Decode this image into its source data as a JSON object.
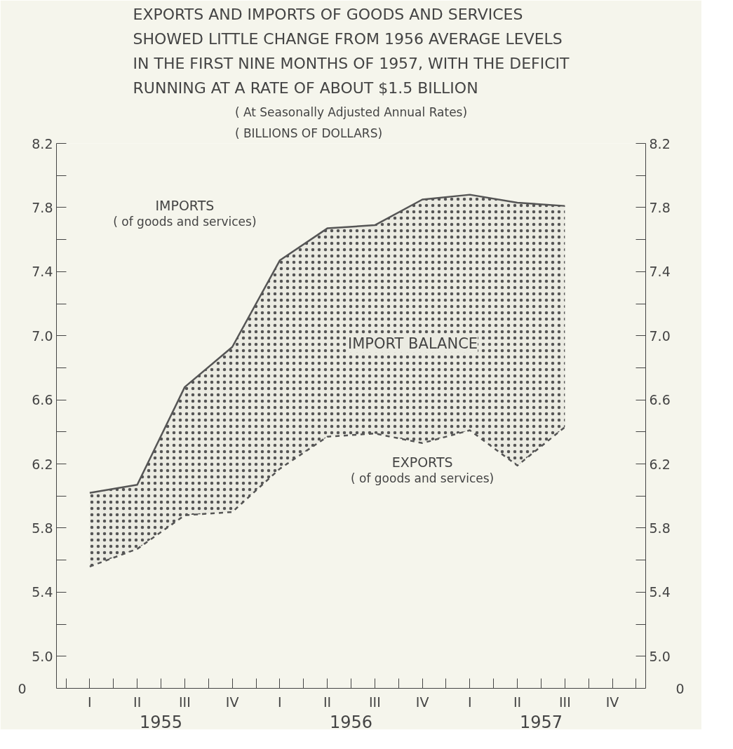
{
  "chart_data": {
    "type": "line",
    "title": "EXPORTS AND IMPORTS OF GOODS AND SERVICES\nSHOWED LITTLE CHANGE FROM 1956 AVERAGE LEVELS\nIN THE FIRST NINE MONTHS OF 1957, WITH THE DEFICIT\nRUNNING AT A RATE OF ABOUT $1.5 BILLION",
    "subtitle": "( At Seasonally Adjusted Annual Rates)\n( BILLIONS OF DOLLARS)",
    "categories": [
      "I",
      "II",
      "III",
      "IV",
      "I",
      "II",
      "III",
      "IV",
      "I",
      "II",
      "III",
      "IV"
    ],
    "series": [
      {
        "name": "IMPORTS\n( of goods and services)",
        "color": "#555555",
        "line_style": "solid",
        "values": [
          6.02,
          6.07,
          6.68,
          6.93,
          7.47,
          7.67,
          7.69,
          7.85,
          7.88,
          7.83,
          7.81,
          null
        ],
        "lower": [
          5.56,
          5.67,
          5.88,
          5.9,
          6.17,
          6.37,
          6.39,
          6.33,
          6.41,
          6.19,
          6.43,
          null
        ],
        "upper": [
          6.02,
          6.07,
          6.68,
          6.93,
          7.47,
          7.67,
          7.69,
          7.85,
          7.88,
          7.83,
          7.81,
          null
        ]
      },
      {
        "name": "EXPORTS\n( of goods and services)",
        "color": "#555555",
        "line_style": "dashed",
        "values": [
          5.56,
          5.67,
          5.88,
          5.9,
          6.17,
          6.37,
          6.39,
          6.33,
          6.41,
          6.19,
          6.43,
          null
        ]
      }
    ],
    "annotations": [
      "IMPORT BALANCE",
      "0",
      "0",
      "1955",
      "1956",
      "1957"
    ],
    "ylim": [
      4.8,
      8.2
    ],
    "yticks": [
      {
        "value": 5.0,
        "label": "5.0"
      },
      {
        "value": 5.2,
        "label": null
      },
      5.4,
      {
        "value": 5.6,
        "label": null
      },
      5.8,
      {
        "value": 6.0,
        "label": null
      },
      6.2,
      {
        "value": 6.4,
        "label": null
      },
      6.6,
      {
        "value": 6.8,
        "label": null
      },
      {
        "value": 7.0,
        "label": "7.0"
      },
      {
        "value": 7.2,
        "label": null
      },
      7.4,
      {
        "value": 7.6,
        "label": null
      },
      7.8,
      {
        "value": 8.0,
        "label": null
      },
      8.2
    ],
    "y2lim": [
      4.8,
      8.2
    ],
    "y2ticks": [
      {
        "value": 5.0,
        "label": "5.0"
      },
      {
        "value": 5.2,
        "label": null
      },
      5.4,
      {
        "value": 5.6,
        "label": null
      },
      5.8,
      {
        "value": 6.0,
        "label": null
      },
      6.2,
      {
        "value": 6.4,
        "label": null
      },
      6.6,
      {
        "value": 6.8,
        "label": null
      },
      {
        "value": 7.0,
        "label": "7.0"
      },
      {
        "value": 7.2,
        "label": null
      },
      7.4,
      {
        "value": 7.6,
        "label": null
      },
      7.8,
      {
        "value": 8.0,
        "label": null
      },
      8.2
    ],
    "grid": false,
    "marker": "none"
  }
}
